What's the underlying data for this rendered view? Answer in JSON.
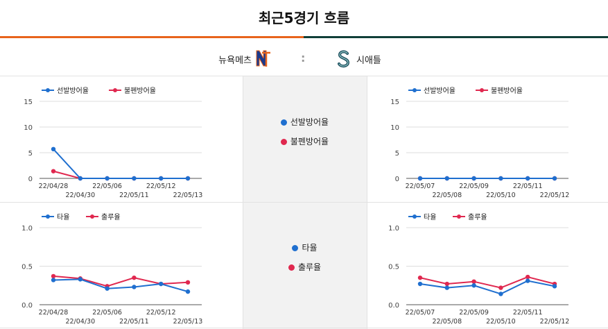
{
  "page": {
    "title": "최근5경기 흐름"
  },
  "teams": {
    "home": "뉴욕메츠",
    "separator": ":",
    "away": "시애틀"
  },
  "colors": {
    "accent_left": "#e8641c",
    "accent_right": "#103f38",
    "series1": "#1f6fcf",
    "series2": "#e0284f"
  },
  "icons": {
    "home_logo": "mets-logo-icon",
    "away_logo": "mariners-logo-icon"
  },
  "legends": {
    "era": [
      "선발방어율",
      "불펜방어율"
    ],
    "hitting": [
      "타율",
      "출루율"
    ]
  },
  "chart_data": [
    {
      "id": "home-era",
      "type": "line",
      "x": [
        "22/04/28",
        "22/04/30",
        "22/05/06",
        "22/05/11",
        "22/05/12",
        "22/05/13"
      ],
      "ylim": [
        0,
        15
      ],
      "yticks": [
        "0",
        "5",
        "10",
        "15"
      ],
      "ytick_values": [
        0,
        5,
        10,
        15
      ],
      "legend": "top-left",
      "series": [
        {
          "name": "선발방어율",
          "values": [
            5.7,
            0,
            0,
            0,
            0,
            0
          ]
        },
        {
          "name": "불펜방어율",
          "values": [
            1.4,
            0,
            0,
            0,
            0,
            0
          ]
        }
      ]
    },
    {
      "id": "away-era",
      "type": "line",
      "x": [
        "22/05/07",
        "22/05/08",
        "22/05/09",
        "22/05/10",
        "22/05/11",
        "22/05/12"
      ],
      "ylim": [
        0,
        15
      ],
      "yticks": [
        "0",
        "5",
        "10",
        "15"
      ],
      "ytick_values": [
        0,
        5,
        10,
        15
      ],
      "legend": "top-left",
      "series": [
        {
          "name": "선발방어율",
          "values": [
            0,
            0,
            0,
            0,
            0,
            0
          ]
        },
        {
          "name": "불펜방어율",
          "values": [
            0,
            0,
            0,
            0,
            0,
            0
          ]
        }
      ]
    },
    {
      "id": "home-hitting",
      "type": "line",
      "x": [
        "22/04/28",
        "22/04/30",
        "22/05/06",
        "22/05/11",
        "22/05/12",
        "22/05/13"
      ],
      "ylim": [
        0,
        1.0
      ],
      "yticks": [
        "0.0",
        "0.5",
        "1.0"
      ],
      "ytick_values": [
        0,
        0.5,
        1.0
      ],
      "legend": "top-left",
      "series": [
        {
          "name": "타율",
          "values": [
            0.32,
            0.33,
            0.21,
            0.23,
            0.27,
            0.17
          ]
        },
        {
          "name": "출루율",
          "values": [
            0.37,
            0.34,
            0.24,
            0.35,
            0.27,
            0.29
          ]
        }
      ]
    },
    {
      "id": "away-hitting",
      "type": "line",
      "x": [
        "22/05/07",
        "22/05/08",
        "22/05/09",
        "22/05/10",
        "22/05/11",
        "22/05/12"
      ],
      "ylim": [
        0,
        1.0
      ],
      "yticks": [
        "0.0",
        "0.5",
        "1.0"
      ],
      "ytick_values": [
        0,
        0.5,
        1.0
      ],
      "legend": "top-left",
      "series": [
        {
          "name": "타율",
          "values": [
            0.27,
            0.22,
            0.25,
            0.14,
            0.31,
            0.24
          ]
        },
        {
          "name": "출루율",
          "values": [
            0.35,
            0.27,
            0.3,
            0.22,
            0.36,
            0.27
          ]
        }
      ]
    }
  ]
}
